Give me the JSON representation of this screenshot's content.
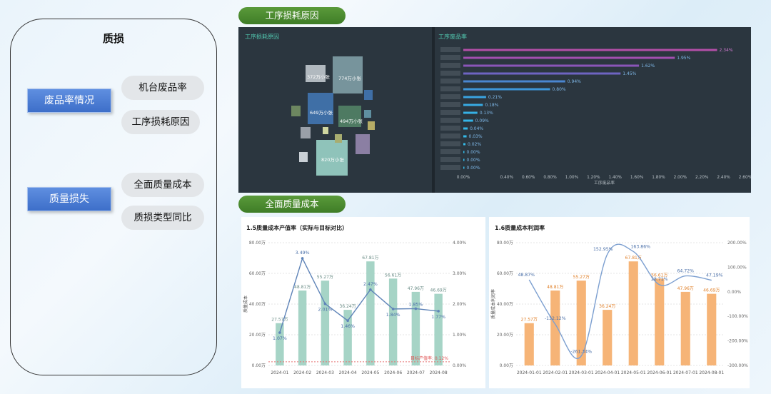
{
  "left": {
    "title": "质损",
    "categories": [
      {
        "label": "废品率情况",
        "items": [
          "机台废品率",
          "工序损耗原因"
        ]
      },
      {
        "label": "质量损失",
        "items": [
          "全面质量成本",
          "质损类型同比"
        ]
      }
    ]
  },
  "sections": {
    "process_loss": "工序损耗原因",
    "total_quality": "全面质量成本"
  },
  "dark": {
    "treemap_title": "工序损耗原因",
    "bar_title": "工序废品率",
    "treemap_labels": [
      "372万小张",
      "774万小张",
      "649万小张",
      "494万小张",
      "820万小张"
    ]
  },
  "colors": {
    "green_header": "#4a8a30",
    "dark_bg": "#2b363f",
    "teal_bar": "#a6d4c6",
    "orange_bar": "#f6b477",
    "line": "#6f93c6"
  },
  "chart_data": [
    {
      "type": "bar",
      "orientation": "horizontal",
      "title": "工序废品率",
      "xlabel": "工序废品率",
      "xlim": [
        0,
        0.026
      ],
      "x_ticks": [
        "0.00%",
        "0.40%",
        "0.60%",
        "0.80%",
        "1.00%",
        "1.20%",
        "1.40%",
        "1.60%",
        "1.80%",
        "2.00%",
        "2.20%",
        "2.40%",
        "2.60%"
      ],
      "values": [
        0.0234,
        0.0195,
        0.0162,
        0.0145,
        0.0094,
        0.008,
        0.0021,
        0.0018,
        0.0013,
        0.0009,
        0.0004,
        0.0003,
        0.0002,
        0.0,
        0.0,
        0.0
      ],
      "labels": [
        "2.34%",
        "1.95%",
        "1.62%",
        "1.45%",
        "0.94%",
        "0.80%",
        "0.21%",
        "0.18%",
        "0.13%",
        "0.09%",
        "0.04%",
        "0.03%",
        "0.02%",
        "0.00%",
        "0.00%",
        "0.00%"
      ]
    },
    {
      "type": "bar+line",
      "title": "1.5质量成本产值率（实际与目标对比）",
      "ylabel": "质量成本",
      "categories": [
        "2024-01",
        "2024-02",
        "2024-03",
        "2024-04",
        "2024-05",
        "2024-06",
        "2024-07",
        "2024-08"
      ],
      "bar_values": [
        27.57,
        48.81,
        55.27,
        36.24,
        67.81,
        56.61,
        47.96,
        46.69
      ],
      "bar_labels": [
        "27.57万",
        "48.81万",
        "55.27万",
        "36.24万",
        "67.81万",
        "56.61万",
        "47.96万",
        "46.69万"
      ],
      "line_values": [
        1.07,
        3.49,
        2.01,
        1.46,
        2.47,
        1.84,
        1.85,
        1.77
      ],
      "line_labels": [
        "1.07%",
        "3.49%",
        "2.01%",
        "1.46%",
        "2.47%",
        "1.84%",
        "1.85%",
        "1.77%"
      ],
      "y_ticks": [
        "0.00万",
        "20.00万",
        "40.00万",
        "60.00万",
        "80.00万"
      ],
      "y2_ticks": [
        "0.00%",
        "1.00%",
        "2.00%",
        "3.00%",
        "4.00%"
      ],
      "ylim": [
        0,
        80
      ],
      "y2lim": [
        0,
        4
      ],
      "target_label": "目标产值率: 0.12%",
      "target_value": 0.12
    },
    {
      "type": "bar+line",
      "title": "1.6质量成本利润率",
      "ylabel": "质量成本利润率",
      "categories": [
        "2024-01-01",
        "2024-02-01",
        "2024-03-01",
        "2024-04-01",
        "2024-05-01",
        "2024-06-01",
        "2024-07-01",
        "2024-08-01"
      ],
      "bar_values": [
        27.57,
        48.81,
        55.27,
        36.24,
        67.81,
        56.61,
        47.96,
        46.69
      ],
      "bar_labels": [
        "27.57万",
        "48.81万",
        "55.27万",
        "36.24万",
        "67.81万",
        "56.61万",
        "47.96万",
        "46.69万"
      ],
      "line_values": [
        48.87,
        -132.12,
        -261.34,
        152.95,
        163.86,
        28.71,
        64.72,
        47.19
      ],
      "line_labels": [
        "48.87%",
        "-132.12%",
        "-261.34%",
        "152.95%",
        "163.86%",
        "28.71%",
        "64.72%",
        "47.19%"
      ],
      "y_ticks": [
        "0.00万",
        "20.00万",
        "40.00万",
        "60.00万",
        "80.00万"
      ],
      "y2_ticks": [
        "-300.00%",
        "-200.00%",
        "-100.00%",
        "0.00%",
        "100.00%",
        "200.00%"
      ],
      "ylim": [
        0,
        80
      ],
      "y2lim": [
        -300,
        200
      ]
    }
  ]
}
